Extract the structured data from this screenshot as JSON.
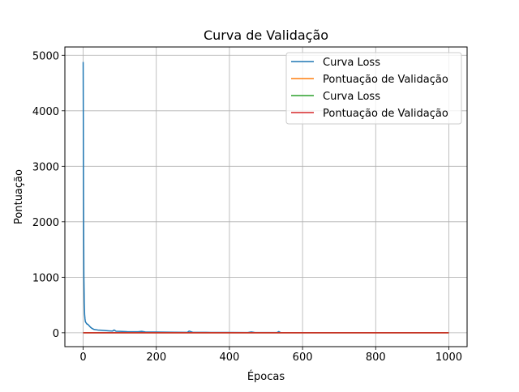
{
  "chart_data": {
    "type": "line",
    "title": "Curva de Validação",
    "xlabel": "Épocas",
    "ylabel": "Pontuação",
    "xlim": [
      -50,
      1050
    ],
    "ylim": [
      -250,
      5150
    ],
    "xticks": [
      0,
      200,
      400,
      600,
      800,
      1000
    ],
    "yticks": [
      0,
      1000,
      2000,
      3000,
      4000,
      5000
    ],
    "grid": true,
    "legend_position": "top-right",
    "series": [
      {
        "name": "Curva Loss",
        "color": "#1f77b4",
        "x": [
          0,
          1,
          2,
          3,
          4,
          5,
          6,
          8,
          10,
          13,
          16,
          20,
          25,
          30,
          40,
          50,
          60,
          70,
          80,
          85,
          90,
          100,
          120,
          150,
          160,
          170,
          200,
          250,
          285,
          290,
          300,
          350,
          400,
          450,
          460,
          470,
          500,
          530,
          535,
          540,
          600,
          700,
          800,
          900,
          1000
        ],
        "values": [
          4880,
          2500,
          1000,
          550,
          330,
          250,
          200,
          180,
          160,
          150,
          130,
          100,
          75,
          60,
          50,
          45,
          40,
          35,
          30,
          50,
          28,
          25,
          20,
          18,
          25,
          15,
          12,
          10,
          8,
          30,
          8,
          6,
          5,
          4,
          15,
          4,
          3,
          3,
          22,
          3,
          2,
          2,
          2,
          1,
          1
        ]
      },
      {
        "name": "Pontuação de Validação",
        "color": "#ff7f0e",
        "x": [
          0,
          1000
        ],
        "values": [
          0,
          0
        ]
      },
      {
        "name": "Curva Loss",
        "color": "#2ca02c",
        "x": [
          0,
          1000
        ],
        "values": [
          0,
          0
        ]
      },
      {
        "name": "Pontuação de Validação",
        "color": "#d62728",
        "x": [
          0,
          1000
        ],
        "values": [
          0,
          0
        ]
      }
    ]
  }
}
